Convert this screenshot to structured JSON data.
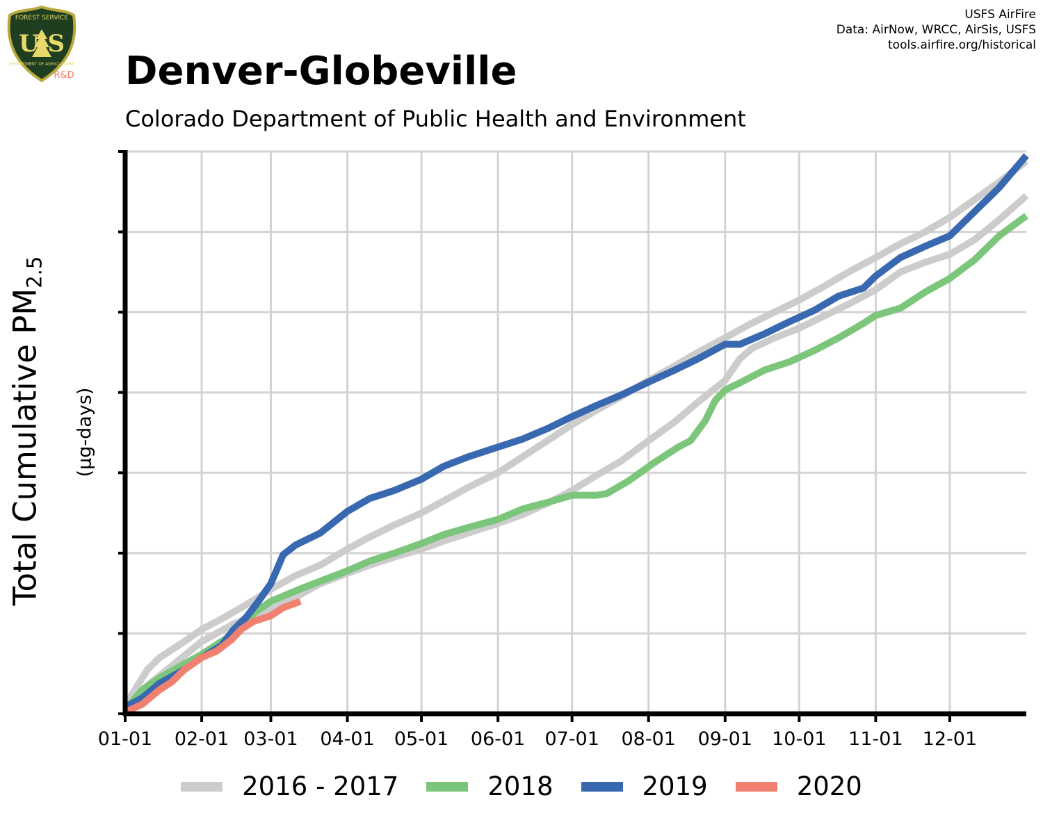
{
  "header": {
    "title": "Denver-Globeville",
    "subtitle": "Colorado Department of Public Health and Environment",
    "credits": [
      "USFS AirFire",
      "Data: AirNow, WRCC, AirSis, USFS",
      "tools.airfire.org/historical"
    ],
    "logo": {
      "text_top": "FOREST SERVICE",
      "text_bottom": "DEPARTMENT OF AGRICULTURE",
      "letters": "U S",
      "badge": "R&D"
    }
  },
  "colors": {
    "series_2016_2017": "#cccccc",
    "series_2018": "#7bc67b",
    "series_2019": "#3868b0",
    "series_2020": "#f28070",
    "grid": "#d3d3d3",
    "axis": "#000000"
  },
  "chart_data": {
    "type": "line",
    "title": "Denver-Globeville",
    "subtitle": "Colorado Department of Public Health and Environment",
    "ylabel": "Total Cumulative PM",
    "ylabel_sub": "2.5",
    "yunits": "(µg-days)",
    "x_ticks": [
      "01-01",
      "02-01",
      "03-01",
      "04-01",
      "05-01",
      "06-01",
      "07-01",
      "08-01",
      "09-01",
      "10-01",
      "11-01",
      "12-01"
    ],
    "x_tick_days": [
      1,
      32,
      60,
      91,
      121,
      152,
      182,
      213,
      244,
      274,
      305,
      335
    ],
    "xlim_days": [
      1,
      366
    ],
    "y_tick_count": 8,
    "ylim_relative": [
      0,
      7
    ],
    "y_tick_labels_shown": false,
    "grid": true,
    "legend_position": "bottom",
    "series": [
      {
        "name": "2016 - 2017",
        "color": "#cccccc",
        "points": [
          [
            1,
            0.1
          ],
          [
            5,
            0.3
          ],
          [
            10,
            0.55
          ],
          [
            15,
            0.7
          ],
          [
            20,
            0.8
          ],
          [
            25,
            0.9
          ],
          [
            32,
            1.05
          ],
          [
            40,
            1.18
          ],
          [
            48,
            1.32
          ],
          [
            55,
            1.45
          ],
          [
            60,
            1.55
          ],
          [
            70,
            1.72
          ],
          [
            80,
            1.85
          ],
          [
            91,
            2.05
          ],
          [
            100,
            2.2
          ],
          [
            110,
            2.35
          ],
          [
            121,
            2.5
          ],
          [
            130,
            2.65
          ],
          [
            140,
            2.82
          ],
          [
            152,
            3.0
          ],
          [
            162,
            3.2
          ],
          [
            172,
            3.4
          ],
          [
            182,
            3.6
          ],
          [
            192,
            3.78
          ],
          [
            202,
            3.95
          ],
          [
            213,
            4.15
          ],
          [
            223,
            4.32
          ],
          [
            233,
            4.5
          ],
          [
            244,
            4.68
          ],
          [
            254,
            4.85
          ],
          [
            264,
            5.0
          ],
          [
            274,
            5.15
          ],
          [
            284,
            5.32
          ],
          [
            294,
            5.5
          ],
          [
            305,
            5.68
          ],
          [
            315,
            5.85
          ],
          [
            325,
            6.0
          ],
          [
            335,
            6.18
          ],
          [
            345,
            6.4
          ],
          [
            355,
            6.62
          ],
          [
            366,
            6.88
          ]
        ]
      },
      {
        "name": "2016 - 2017",
        "color": "#cccccc",
        "points": [
          [
            1,
            0.08
          ],
          [
            10,
            0.35
          ],
          [
            20,
            0.6
          ],
          [
            32,
            0.9
          ],
          [
            45,
            1.12
          ],
          [
            60,
            1.3
          ],
          [
            70,
            1.45
          ],
          [
            80,
            1.62
          ],
          [
            91,
            1.75
          ],
          [
            100,
            1.85
          ],
          [
            110,
            1.95
          ],
          [
            121,
            2.05
          ],
          [
            130,
            2.15
          ],
          [
            140,
            2.25
          ],
          [
            152,
            2.37
          ],
          [
            162,
            2.48
          ],
          [
            172,
            2.62
          ],
          [
            182,
            2.78
          ],
          [
            192,
            2.97
          ],
          [
            202,
            3.15
          ],
          [
            213,
            3.4
          ],
          [
            223,
            3.62
          ],
          [
            233,
            3.88
          ],
          [
            244,
            4.15
          ],
          [
            250,
            4.42
          ],
          [
            255,
            4.55
          ],
          [
            264,
            4.68
          ],
          [
            274,
            4.8
          ],
          [
            284,
            4.95
          ],
          [
            294,
            5.1
          ],
          [
            305,
            5.28
          ],
          [
            315,
            5.5
          ],
          [
            325,
            5.62
          ],
          [
            335,
            5.72
          ],
          [
            345,
            5.9
          ],
          [
            355,
            6.15
          ],
          [
            366,
            6.45
          ]
        ]
      },
      {
        "name": "2018",
        "color": "#7bc67b",
        "points": [
          [
            1,
            0.05
          ],
          [
            8,
            0.3
          ],
          [
            15,
            0.45
          ],
          [
            25,
            0.62
          ],
          [
            32,
            0.74
          ],
          [
            40,
            0.9
          ],
          [
            48,
            1.05
          ],
          [
            53,
            1.25
          ],
          [
            60,
            1.4
          ],
          [
            70,
            1.53
          ],
          [
            80,
            1.65
          ],
          [
            91,
            1.78
          ],
          [
            100,
            1.9
          ],
          [
            110,
            2.0
          ],
          [
            121,
            2.12
          ],
          [
            130,
            2.23
          ],
          [
            140,
            2.32
          ],
          [
            152,
            2.42
          ],
          [
            162,
            2.55
          ],
          [
            172,
            2.63
          ],
          [
            182,
            2.72
          ],
          [
            192,
            2.72
          ],
          [
            196,
            2.74
          ],
          [
            205,
            2.9
          ],
          [
            215,
            3.12
          ],
          [
            225,
            3.32
          ],
          [
            230,
            3.4
          ],
          [
            236,
            3.65
          ],
          [
            240,
            3.9
          ],
          [
            244,
            4.03
          ],
          [
            250,
            4.12
          ],
          [
            260,
            4.28
          ],
          [
            270,
            4.38
          ],
          [
            280,
            4.52
          ],
          [
            290,
            4.68
          ],
          [
            300,
            4.86
          ],
          [
            305,
            4.96
          ],
          [
            315,
            5.05
          ],
          [
            325,
            5.25
          ],
          [
            335,
            5.42
          ],
          [
            345,
            5.65
          ],
          [
            355,
            5.95
          ],
          [
            366,
            6.2
          ]
        ]
      },
      {
        "name": "2019",
        "color": "#3868b0",
        "points": [
          [
            1,
            0.08
          ],
          [
            8,
            0.2
          ],
          [
            15,
            0.38
          ],
          [
            25,
            0.55
          ],
          [
            32,
            0.7
          ],
          [
            40,
            0.85
          ],
          [
            45,
            1.05
          ],
          [
            50,
            1.2
          ],
          [
            55,
            1.4
          ],
          [
            60,
            1.62
          ],
          [
            65,
            1.98
          ],
          [
            70,
            2.1
          ],
          [
            80,
            2.25
          ],
          [
            91,
            2.52
          ],
          [
            100,
            2.68
          ],
          [
            110,
            2.78
          ],
          [
            121,
            2.92
          ],
          [
            130,
            3.08
          ],
          [
            140,
            3.2
          ],
          [
            152,
            3.32
          ],
          [
            162,
            3.42
          ],
          [
            172,
            3.55
          ],
          [
            182,
            3.7
          ],
          [
            192,
            3.84
          ],
          [
            202,
            3.97
          ],
          [
            213,
            4.13
          ],
          [
            223,
            4.27
          ],
          [
            233,
            4.42
          ],
          [
            244,
            4.6
          ],
          [
            250,
            4.6
          ],
          [
            260,
            4.73
          ],
          [
            270,
            4.88
          ],
          [
            280,
            5.02
          ],
          [
            290,
            5.2
          ],
          [
            300,
            5.3
          ],
          [
            305,
            5.45
          ],
          [
            315,
            5.68
          ],
          [
            325,
            5.82
          ],
          [
            335,
            5.95
          ],
          [
            345,
            6.25
          ],
          [
            355,
            6.55
          ],
          [
            366,
            6.95
          ]
        ]
      },
      {
        "name": "2020",
        "color": "#f28070",
        "points": [
          [
            1,
            0.02
          ],
          [
            8,
            0.12
          ],
          [
            15,
            0.3
          ],
          [
            20,
            0.4
          ],
          [
            25,
            0.55
          ],
          [
            32,
            0.7
          ],
          [
            38,
            0.78
          ],
          [
            44,
            0.92
          ],
          [
            48,
            1.05
          ],
          [
            53,
            1.15
          ],
          [
            60,
            1.22
          ],
          [
            65,
            1.32
          ],
          [
            72,
            1.4
          ]
        ]
      }
    ]
  },
  "legend": [
    {
      "label": "2016 - 2017",
      "color": "#cccccc"
    },
    {
      "label": "2018",
      "color": "#7bc67b"
    },
    {
      "label": "2019",
      "color": "#3868b0"
    },
    {
      "label": "2020",
      "color": "#f28070"
    }
  ]
}
